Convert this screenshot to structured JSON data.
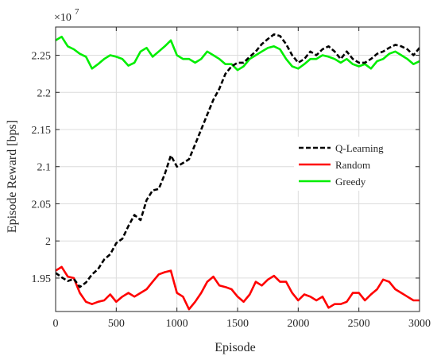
{
  "chart_data": {
    "type": "line",
    "title": "",
    "xlabel": "Episode",
    "ylabel": "Episode Reward [bps]",
    "y_multiplier": "×10",
    "y_multiplier_exp": "7",
    "xlim": [
      0,
      3000
    ],
    "ylim": [
      1.905,
      2.288
    ],
    "x_ticks": [
      0,
      500,
      1000,
      1500,
      2000,
      2500,
      3000
    ],
    "x_tick_labels": [
      "0",
      "500",
      "1000",
      "1500",
      "2000",
      "2500",
      "3000"
    ],
    "y_ticks": [
      1.95,
      2.0,
      2.05,
      2.1,
      2.15,
      2.2,
      2.25
    ],
    "y_tick_labels": [
      "1.95",
      "2",
      "2.05",
      "2.1",
      "2.15",
      "2.2",
      "2.25"
    ],
    "grid": true,
    "legend_position": "center-right",
    "series": [
      {
        "name": "Q-Learning",
        "color": "#000000",
        "style": "dashed",
        "x": [
          0,
          50,
          100,
          150,
          200,
          250,
          300,
          350,
          400,
          450,
          500,
          550,
          600,
          650,
          700,
          750,
          800,
          850,
          900,
          950,
          1000,
          1050,
          1100,
          1150,
          1200,
          1250,
          1300,
          1350,
          1400,
          1450,
          1500,
          1550,
          1600,
          1650,
          1700,
          1750,
          1800,
          1850,
          1900,
          1950,
          2000,
          2050,
          2100,
          2150,
          2200,
          2250,
          2300,
          2350,
          2400,
          2450,
          2500,
          2550,
          2600,
          2650,
          2700,
          2750,
          2800,
          2850,
          2900,
          2950,
          3000
        ],
        "values": [
          1.957,
          1.951,
          1.946,
          1.949,
          1.938,
          1.944,
          1.955,
          1.962,
          1.975,
          1.982,
          1.997,
          2.003,
          2.02,
          2.035,
          2.028,
          2.055,
          2.068,
          2.07,
          2.09,
          2.115,
          2.1,
          2.105,
          2.11,
          2.13,
          2.15,
          2.17,
          2.19,
          2.205,
          2.225,
          2.235,
          2.24,
          2.24,
          2.248,
          2.255,
          2.265,
          2.272,
          2.278,
          2.276,
          2.265,
          2.25,
          2.24,
          2.245,
          2.255,
          2.25,
          2.258,
          2.262,
          2.255,
          2.245,
          2.255,
          2.245,
          2.24,
          2.24,
          2.245,
          2.252,
          2.255,
          2.26,
          2.264,
          2.262,
          2.258,
          2.25,
          2.26
        ]
      },
      {
        "name": "Random",
        "color": "#ff0000",
        "style": "solid",
        "x": [
          0,
          50,
          100,
          150,
          200,
          250,
          300,
          350,
          400,
          450,
          500,
          550,
          600,
          650,
          700,
          750,
          800,
          850,
          900,
          950,
          1000,
          1050,
          1100,
          1150,
          1200,
          1250,
          1300,
          1350,
          1400,
          1450,
          1500,
          1550,
          1600,
          1650,
          1700,
          1750,
          1800,
          1850,
          1900,
          1950,
          2000,
          2050,
          2100,
          2150,
          2200,
          2250,
          2300,
          2350,
          2400,
          2450,
          2500,
          2550,
          2600,
          2650,
          2700,
          2750,
          2800,
          2850,
          2900,
          2950,
          3000
        ],
        "values": [
          1.96,
          1.965,
          1.952,
          1.95,
          1.93,
          1.918,
          1.915,
          1.918,
          1.92,
          1.928,
          1.918,
          1.925,
          1.93,
          1.925,
          1.93,
          1.935,
          1.945,
          1.955,
          1.958,
          1.96,
          1.93,
          1.925,
          1.908,
          1.918,
          1.93,
          1.945,
          1.952,
          1.94,
          1.938,
          1.935,
          1.925,
          1.918,
          1.928,
          1.945,
          1.94,
          1.948,
          1.953,
          1.945,
          1.945,
          1.93,
          1.92,
          1.928,
          1.925,
          1.92,
          1.925,
          1.91,
          1.915,
          1.915,
          1.918,
          1.93,
          1.93,
          1.92,
          1.928,
          1.935,
          1.948,
          1.945,
          1.935,
          1.93,
          1.925,
          1.92,
          1.92
        ]
      },
      {
        "name": "Greedy",
        "color": "#00ee00",
        "style": "solid",
        "x": [
          0,
          50,
          100,
          150,
          200,
          250,
          300,
          350,
          400,
          450,
          500,
          550,
          600,
          650,
          700,
          750,
          800,
          850,
          900,
          950,
          1000,
          1050,
          1100,
          1150,
          1200,
          1250,
          1300,
          1350,
          1400,
          1450,
          1500,
          1550,
          1600,
          1650,
          1700,
          1750,
          1800,
          1850,
          1900,
          1950,
          2000,
          2050,
          2100,
          2150,
          2200,
          2250,
          2300,
          2350,
          2400,
          2450,
          2500,
          2550,
          2600,
          2650,
          2700,
          2750,
          2800,
          2850,
          2900,
          2950,
          3000
        ],
        "values": [
          2.27,
          2.275,
          2.262,
          2.258,
          2.252,
          2.248,
          2.232,
          2.238,
          2.245,
          2.25,
          2.248,
          2.245,
          2.236,
          2.24,
          2.255,
          2.26,
          2.248,
          2.255,
          2.262,
          2.27,
          2.25,
          2.245,
          2.245,
          2.24,
          2.245,
          2.255,
          2.25,
          2.245,
          2.238,
          2.238,
          2.23,
          2.235,
          2.245,
          2.25,
          2.255,
          2.26,
          2.262,
          2.258,
          2.245,
          2.235,
          2.232,
          2.238,
          2.245,
          2.245,
          2.25,
          2.248,
          2.245,
          2.24,
          2.245,
          2.238,
          2.235,
          2.238,
          2.232,
          2.242,
          2.245,
          2.252,
          2.255,
          2.25,
          2.245,
          2.238,
          2.242
        ]
      }
    ]
  }
}
